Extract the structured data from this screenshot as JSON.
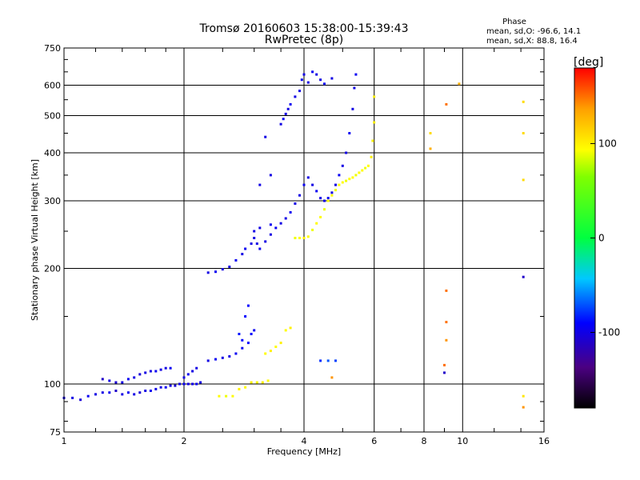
{
  "header": {
    "title_line1": "Tromsø 20160603 15:38:00-15:39:43",
    "title_line2": "RwPretec (8p)",
    "phase_title": "Phase",
    "phase_line1": "mean, sd,O: -96.6, 14.1",
    "phase_line2": "mean, sd,X:  88.8, 16.4"
  },
  "chart_data": {
    "type": "scatter",
    "xlabel": "Frequency [MHz]",
    "ylabel": "Stationary phase Virtual Height [km]",
    "xscale": "log",
    "yscale": "log",
    "xlim": [
      1,
      16
    ],
    "ylim": [
      75,
      750
    ],
    "x_ticks": [
      1,
      2,
      4,
      6,
      8,
      10,
      16
    ],
    "x_tick_labels": [
      "1",
      "2",
      "4",
      "6",
      "8",
      "10",
      "16"
    ],
    "y_ticks": [
      75,
      100,
      200,
      300,
      400,
      500,
      600,
      750
    ],
    "y_tick_labels": [
      "75",
      "100",
      "200",
      "300",
      "400",
      "500",
      "600",
      "750"
    ],
    "grid": true,
    "colorbar": {
      "label": "[deg]",
      "range": [
        -180,
        180
      ],
      "ticks": [
        -100,
        0,
        100
      ],
      "tick_labels": [
        "-100",
        "0",
        "100"
      ]
    },
    "series": [
      {
        "name": "O-mode",
        "mean_phase_deg": -96.6,
        "points": [
          [
            1.0,
            92,
            -100
          ],
          [
            1.05,
            92,
            -100
          ],
          [
            1.1,
            91,
            -105
          ],
          [
            1.15,
            93,
            -95
          ],
          [
            1.2,
            94,
            -100
          ],
          [
            1.25,
            95,
            -100
          ],
          [
            1.3,
            95,
            -95
          ],
          [
            1.35,
            96,
            -110
          ],
          [
            1.4,
            94,
            -100
          ],
          [
            1.45,
            95,
            -95
          ],
          [
            1.5,
            94,
            -100
          ],
          [
            1.55,
            95,
            -105
          ],
          [
            1.6,
            96,
            -100
          ],
          [
            1.65,
            96,
            -95
          ],
          [
            1.7,
            97,
            -100
          ],
          [
            1.75,
            98,
            -100
          ],
          [
            1.8,
            98,
            -95
          ],
          [
            1.85,
            99,
            -100
          ],
          [
            1.9,
            99,
            -105
          ],
          [
            1.95,
            100,
            -100
          ],
          [
            2.0,
            100,
            -95
          ],
          [
            2.05,
            100,
            -100
          ],
          [
            2.1,
            100,
            -100
          ],
          [
            2.15,
            100,
            -95
          ],
          [
            2.2,
            101,
            -100
          ],
          [
            1.25,
            103,
            -110
          ],
          [
            1.3,
            102,
            -100
          ],
          [
            1.35,
            101,
            -105
          ],
          [
            1.4,
            101,
            -100
          ],
          [
            1.45,
            103,
            -95
          ],
          [
            1.5,
            104,
            -100
          ],
          [
            1.55,
            106,
            -105
          ],
          [
            1.6,
            107,
            -100
          ],
          [
            1.65,
            108,
            -100
          ],
          [
            1.7,
            108,
            -95
          ],
          [
            1.75,
            109,
            -100
          ],
          [
            1.8,
            110,
            -100
          ],
          [
            1.85,
            110,
            -95
          ],
          [
            2.0,
            104,
            -100
          ],
          [
            2.05,
            106,
            -95
          ],
          [
            2.1,
            108,
            -100
          ],
          [
            2.15,
            110,
            -100
          ],
          [
            2.3,
            115,
            -100
          ],
          [
            2.4,
            116,
            -95
          ],
          [
            2.5,
            117,
            -100
          ],
          [
            2.6,
            118,
            -100
          ],
          [
            2.7,
            120,
            -95
          ],
          [
            2.8,
            124,
            -95
          ],
          [
            2.9,
            128,
            -90
          ],
          [
            2.95,
            135,
            -90
          ],
          [
            3.0,
            138,
            -95
          ],
          [
            2.85,
            150,
            -90
          ],
          [
            2.9,
            160,
            -90
          ],
          [
            2.75,
            135,
            -85
          ],
          [
            2.8,
            130,
            -90
          ],
          [
            2.3,
            195,
            -100
          ],
          [
            2.4,
            196,
            -95
          ],
          [
            2.5,
            199,
            -100
          ],
          [
            2.6,
            202,
            -100
          ],
          [
            2.7,
            210,
            -95
          ],
          [
            2.8,
            218,
            -100
          ],
          [
            2.85,
            225,
            -95
          ],
          [
            2.95,
            232,
            -100
          ],
          [
            3.0,
            240,
            -100
          ],
          [
            3.05,
            232,
            -100
          ],
          [
            3.1,
            225,
            -95
          ],
          [
            3.2,
            235,
            -100
          ],
          [
            3.3,
            245,
            -100
          ],
          [
            3.4,
            255,
            -95
          ],
          [
            3.5,
            262,
            -100
          ],
          [
            3.6,
            270,
            -100
          ],
          [
            3.7,
            280,
            -95
          ],
          [
            3.8,
            295,
            -100
          ],
          [
            3.9,
            310,
            -100
          ],
          [
            4.0,
            330,
            -95
          ],
          [
            4.1,
            345,
            -100
          ],
          [
            4.2,
            330,
            -100
          ],
          [
            4.3,
            318,
            -95
          ],
          [
            4.4,
            305,
            -100
          ],
          [
            4.5,
            300,
            -100
          ],
          [
            4.6,
            305,
            -95
          ],
          [
            4.7,
            315,
            -100
          ],
          [
            4.8,
            330,
            -100
          ],
          [
            4.9,
            350,
            -95
          ],
          [
            5.0,
            370,
            -100
          ],
          [
            5.1,
            400,
            -100
          ],
          [
            5.2,
            450,
            -95
          ],
          [
            5.3,
            520,
            -100
          ],
          [
            5.35,
            590,
            -100
          ],
          [
            5.4,
            640,
            -95
          ],
          [
            3.1,
            330,
            -100
          ],
          [
            3.3,
            350,
            -100
          ],
          [
            3.2,
            440,
            -100
          ],
          [
            3.5,
            475,
            -100
          ],
          [
            3.55,
            490,
            -95
          ],
          [
            3.6,
            505,
            -100
          ],
          [
            3.65,
            520,
            -100
          ],
          [
            3.7,
            535,
            -95
          ],
          [
            3.8,
            560,
            -100
          ],
          [
            3.9,
            580,
            -100
          ],
          [
            3.95,
            620,
            -95
          ],
          [
            4.0,
            640,
            -100
          ],
          [
            4.1,
            610,
            -100
          ],
          [
            4.2,
            650,
            -95
          ],
          [
            4.3,
            640,
            -100
          ],
          [
            4.4,
            620,
            -100
          ],
          [
            4.5,
            605,
            -95
          ],
          [
            4.7,
            625,
            -100
          ],
          [
            3.0,
            250,
            -100
          ],
          [
            3.1,
            255,
            -100
          ],
          [
            3.3,
            260,
            -95
          ],
          [
            4.4,
            115,
            -80
          ],
          [
            4.6,
            115,
            -70
          ],
          [
            4.8,
            115,
            -75
          ],
          [
            9.0,
            107,
            -110
          ],
          [
            14.2,
            190,
            -110
          ]
        ]
      },
      {
        "name": "X-mode",
        "mean_phase_deg": 88.8,
        "points": [
          [
            2.45,
            93,
            95
          ],
          [
            2.55,
            93,
            90
          ],
          [
            2.65,
            93,
            95
          ],
          [
            2.75,
            97,
            100
          ],
          [
            2.85,
            98,
            95
          ],
          [
            2.95,
            101,
            100
          ],
          [
            3.05,
            101,
            95
          ],
          [
            3.15,
            101,
            100
          ],
          [
            3.25,
            102,
            95
          ],
          [
            3.2,
            120,
            95
          ],
          [
            3.3,
            122,
            100
          ],
          [
            3.4,
            125,
            95
          ],
          [
            3.5,
            128,
            100
          ],
          [
            3.6,
            138,
            95
          ],
          [
            3.7,
            140,
            100
          ],
          [
            3.8,
            240,
            90
          ],
          [
            3.9,
            240,
            95
          ],
          [
            4.0,
            240,
            100
          ],
          [
            4.1,
            242,
            95
          ],
          [
            4.2,
            252,
            90
          ],
          [
            4.3,
            262,
            95
          ],
          [
            4.4,
            272,
            95
          ],
          [
            4.5,
            285,
            90
          ],
          [
            4.6,
            300,
            95
          ],
          [
            4.7,
            310,
            95
          ],
          [
            4.8,
            320,
            90
          ],
          [
            4.9,
            330,
            95
          ],
          [
            5.0,
            335,
            95
          ],
          [
            5.1,
            338,
            90
          ],
          [
            5.2,
            342,
            95
          ],
          [
            5.3,
            345,
            95
          ],
          [
            5.4,
            350,
            90
          ],
          [
            5.5,
            355,
            95
          ],
          [
            5.6,
            360,
            95
          ],
          [
            5.7,
            365,
            90
          ],
          [
            5.8,
            370,
            95
          ],
          [
            5.9,
            390,
            100
          ],
          [
            5.95,
            430,
            100
          ],
          [
            6.0,
            480,
            100
          ],
          [
            6.0,
            560,
            100
          ],
          [
            14.2,
            93,
            105
          ],
          [
            14.2,
            543,
            110
          ],
          [
            14.2,
            450,
            110
          ],
          [
            14.2,
            340,
            110
          ],
          [
            14.2,
            87,
            140
          ],
          [
            8.3,
            450,
            110
          ],
          [
            8.3,
            410,
            130
          ],
          [
            9.1,
            535,
            150
          ],
          [
            9.1,
            175,
            150
          ],
          [
            9.1,
            145,
            150
          ],
          [
            9.1,
            130,
            140
          ],
          [
            9.0,
            112,
            150
          ],
          [
            9.8,
            605,
            130
          ],
          [
            4.7,
            104,
            140
          ]
        ]
      }
    ]
  }
}
